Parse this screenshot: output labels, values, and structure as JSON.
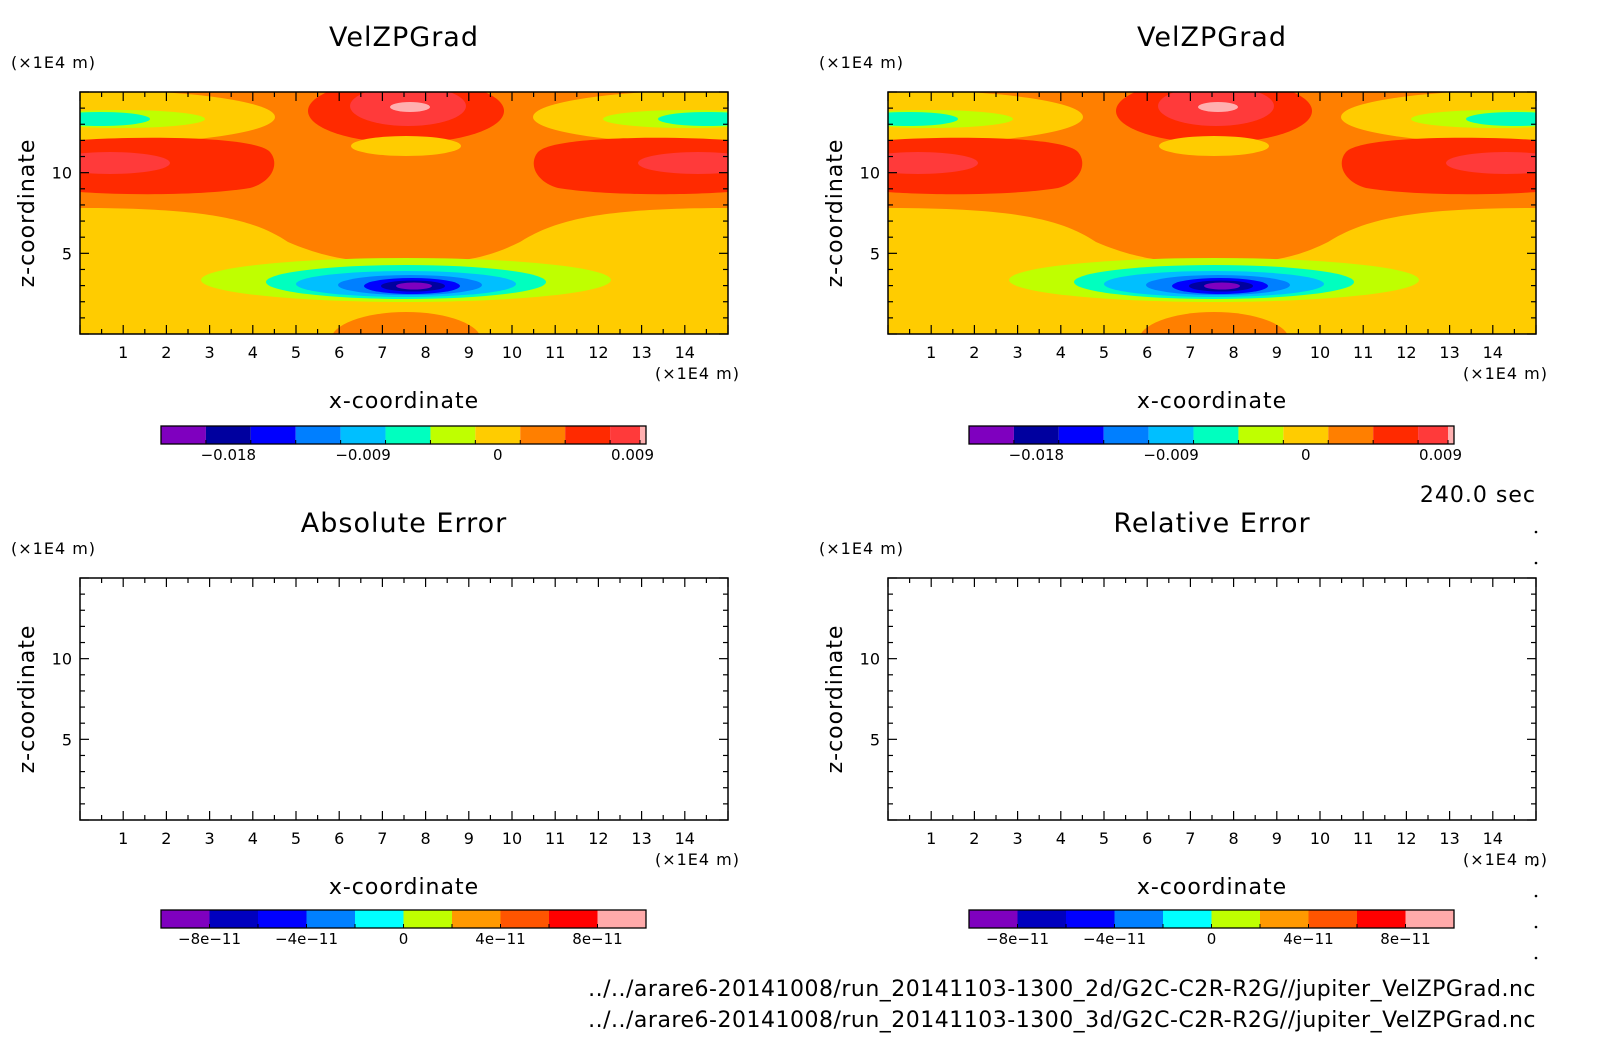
{
  "figure": {
    "time_label": "240.0 sec",
    "footer": [
      "../../arare6-20141008/run_20141103-1300_2d/G2C-C2R-R2G//jupiter_VelZPGrad.nc",
      "../../arare6-20141008/run_20141103-1300_3d/G2C-C2R-R2G//jupiter_VelZPGrad.nc"
    ]
  },
  "colors": {
    "field_scale": [
      "#7f00bf",
      "#00009f",
      "#0000ff",
      "#007fff",
      "#00bfff",
      "#00ffbf",
      "#bfff00",
      "#ffcc00",
      "#ff7f00",
      "#ff2a00",
      "#ff3a3a",
      "#ffb0b0"
    ],
    "error_scale": [
      "#7f00bf",
      "#0000bf",
      "#0000ff",
      "#0080ff",
      "#00ffff",
      "#bfff00",
      "#ff9900",
      "#ff5500",
      "#ff0000",
      "#ffaaaa"
    ]
  },
  "chart_data": [
    {
      "type": "heatmap",
      "title": "VelZPGrad",
      "xlabel": "x-coordinate",
      "ylabel": "z-coordinate",
      "x_unit": "(×1E4 m)",
      "y_unit": "(×1E4 m)",
      "xlim": [
        0,
        15
      ],
      "ylim": [
        0,
        15
      ],
      "x_ticks": [
        "1",
        "2",
        "3",
        "4",
        "5",
        "6",
        "7",
        "8",
        "9",
        "10",
        "11",
        "12",
        "13",
        "14"
      ],
      "y_ticks": [
        "5",
        "10"
      ],
      "filled": true,
      "colorbar": {
        "range": [
          -0.0225,
          0.0099
        ],
        "levels": [
          -0.0225,
          -0.0195,
          -0.0165,
          -0.0135,
          -0.0105,
          -0.0075,
          -0.0045,
          -0.0015,
          0.0015,
          0.0045,
          0.0075,
          0.0095,
          0.0099
        ],
        "tick_values": [
          -0.018,
          -0.009,
          0,
          0.009
        ],
        "tick_labels": [
          "−0.018",
          "−0.009",
          "0",
          "0.009"
        ]
      }
    },
    {
      "type": "heatmap",
      "title": "VelZPGrad",
      "xlabel": "x-coordinate",
      "ylabel": "z-coordinate",
      "x_unit": "(×1E4 m)",
      "y_unit": "(×1E4 m)",
      "xlim": [
        0,
        15
      ],
      "ylim": [
        0,
        15
      ],
      "x_ticks": [
        "1",
        "2",
        "3",
        "4",
        "5",
        "6",
        "7",
        "8",
        "9",
        "10",
        "11",
        "12",
        "13",
        "14"
      ],
      "y_ticks": [
        "5",
        "10"
      ],
      "filled": true,
      "colorbar": {
        "range": [
          -0.0225,
          0.0099
        ],
        "levels": [
          -0.0225,
          -0.0195,
          -0.0165,
          -0.0135,
          -0.0105,
          -0.0075,
          -0.0045,
          -0.0015,
          0.0015,
          0.0045,
          0.0075,
          0.0095,
          0.0099
        ],
        "tick_values": [
          -0.018,
          -0.009,
          0,
          0.009
        ],
        "tick_labels": [
          "−0.018",
          "−0.009",
          "0",
          "0.009"
        ]
      }
    },
    {
      "type": "heatmap",
      "title": "Absolute Error",
      "xlabel": "x-coordinate",
      "ylabel": "z-coordinate",
      "x_unit": "(×1E4 m)",
      "y_unit": "(×1E4 m)",
      "xlim": [
        0,
        15
      ],
      "ylim": [
        0,
        15
      ],
      "x_ticks": [
        "1",
        "2",
        "3",
        "4",
        "5",
        "6",
        "7",
        "8",
        "9",
        "10",
        "11",
        "12",
        "13",
        "14"
      ],
      "y_ticks": [
        "5",
        "10"
      ],
      "filled": false,
      "colorbar": {
        "range": [
          -1e-10,
          1e-10
        ],
        "levels": [
          -1e-10,
          -8e-11,
          -6e-11,
          -4e-11,
          -2e-11,
          0,
          2e-11,
          4e-11,
          6e-11,
          8e-11,
          1e-10
        ],
        "tick_values": [
          -8e-11,
          -4e-11,
          0,
          4e-11,
          8e-11
        ],
        "tick_labels": [
          "−8e−11",
          "−4e−11",
          "0",
          "4e−11",
          "8e−11"
        ]
      }
    },
    {
      "type": "heatmap",
      "title": "Relative Error",
      "xlabel": "x-coordinate",
      "ylabel": "z-coordinate",
      "x_unit": "(×1E4 m)",
      "y_unit": "(×1E4 m)",
      "xlim": [
        0,
        15
      ],
      "ylim": [
        0,
        15
      ],
      "x_ticks": [
        "1",
        "2",
        "3",
        "4",
        "5",
        "6",
        "7",
        "8",
        "9",
        "10",
        "11",
        "12",
        "13",
        "14"
      ],
      "y_ticks": [
        "5",
        "10"
      ],
      "filled": false,
      "colorbar": {
        "range": [
          -1e-10,
          1e-10
        ],
        "levels": [
          -1e-10,
          -8e-11,
          -6e-11,
          -4e-11,
          -2e-11,
          0,
          2e-11,
          4e-11,
          6e-11,
          8e-11,
          1e-10
        ],
        "tick_values": [
          -8e-11,
          -4e-11,
          0,
          4e-11,
          8e-11
        ],
        "tick_labels": [
          "−8e−11",
          "−4e−11",
          "0",
          "4e−11",
          "8e−11"
        ]
      }
    }
  ]
}
